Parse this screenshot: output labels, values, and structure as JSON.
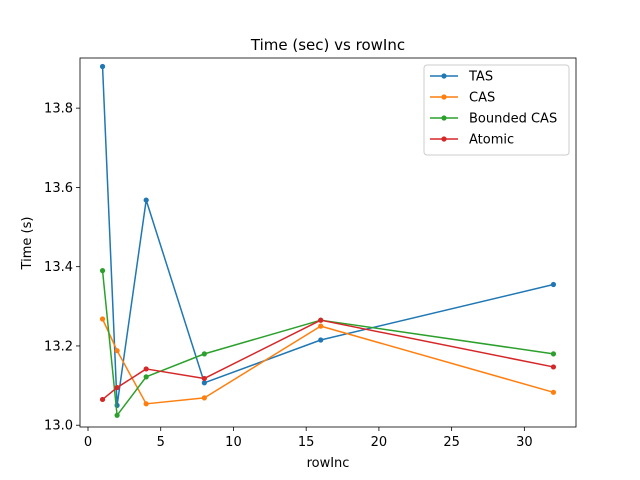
{
  "chart_data": {
    "type": "line",
    "title": "Time (sec) vs rowInc",
    "xlabel": "rowInc",
    "ylabel": "Time (s)",
    "xlim": [
      -0.55,
      33.55
    ],
    "ylim": [
      12.9955,
      13.9265
    ],
    "xticks": [
      0,
      5,
      10,
      15,
      20,
      25,
      30
    ],
    "xtick_labels": [
      "0",
      "5",
      "10",
      "15",
      "20",
      "25",
      "30"
    ],
    "yticks": [
      13.0,
      13.2,
      13.4,
      13.6,
      13.8
    ],
    "ytick_labels": [
      "13.0",
      "13.2",
      "13.4",
      "13.6",
      "13.8"
    ],
    "grid": false,
    "legend_position": "top-right",
    "x": [
      1,
      2,
      4,
      8,
      16,
      32
    ],
    "series": [
      {
        "name": "TAS",
        "color": "#1f77b4",
        "values": [
          13.905,
          13.05,
          13.568,
          13.107,
          13.215,
          13.355
        ]
      },
      {
        "name": "CAS",
        "color": "#ff7f0e",
        "values": [
          13.268,
          13.188,
          13.054,
          13.069,
          13.25,
          13.083
        ]
      },
      {
        "name": "Bounded CAS",
        "color": "#2ca02c",
        "values": [
          13.39,
          13.025,
          13.122,
          13.18,
          13.265,
          13.18
        ]
      },
      {
        "name": "Atomic",
        "color": "#d62728",
        "values": [
          13.065,
          13.095,
          13.142,
          13.118,
          13.265,
          13.147
        ]
      }
    ]
  }
}
